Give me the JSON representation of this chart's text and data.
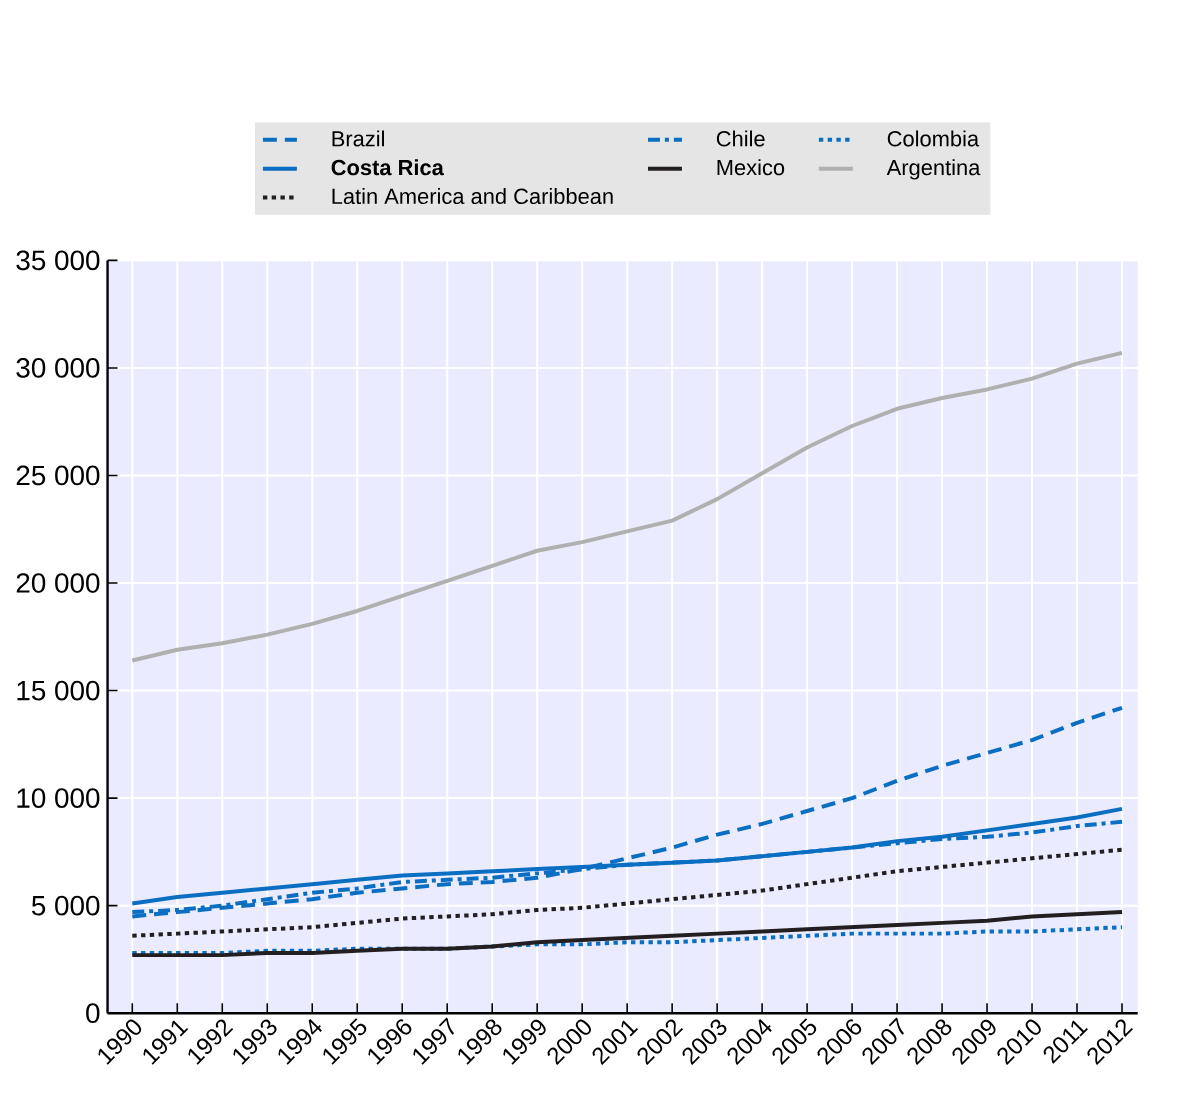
{
  "chart_data": {
    "type": "line",
    "categories": [
      "1990",
      "1991",
      "1992",
      "1993",
      "1994",
      "1995",
      "1996",
      "1997",
      "1998",
      "1999",
      "2000",
      "2001",
      "2002",
      "2003",
      "2004",
      "2005",
      "2006",
      "2007",
      "2008",
      "2009",
      "2010",
      "2011",
      "2012"
    ],
    "series": [
      {
        "name": "Brazil",
        "color": "#0a6fc2",
        "line_style": "dashed",
        "values": [
          4500,
          4700,
          4900,
          5100,
          5300,
          5600,
          5800,
          6000,
          6100,
          6300,
          6700,
          7200,
          7700,
          8300,
          8800,
          9400,
          10000,
          10800,
          11500,
          12100,
          12700,
          13500,
          14200
        ]
      },
      {
        "name": "Chile",
        "color": "#0a6fc2",
        "line_style": "dashdot",
        "values": [
          4700,
          4800,
          5000,
          5300,
          5600,
          5800,
          6100,
          6200,
          6300,
          6500,
          6700,
          6900,
          7000,
          7100,
          7300,
          7500,
          7700,
          7900,
          8100,
          8200,
          8400,
          8700,
          8900
        ]
      },
      {
        "name": "Colombia",
        "color": "#0a6fc2",
        "line_style": "dotted",
        "values": [
          2800,
          2800,
          2800,
          2900,
          2900,
          3000,
          3000,
          3000,
          3100,
          3200,
          3200,
          3300,
          3300,
          3400,
          3500,
          3600,
          3700,
          3700,
          3700,
          3800,
          3800,
          3900,
          4000
        ]
      },
      {
        "name": "**Costa Rica**",
        "color": "#0a6fc2",
        "line_style": "solid",
        "values": [
          5100,
          5400,
          5600,
          5800,
          6000,
          6200,
          6400,
          6500,
          6600,
          6700,
          6800,
          6900,
          7000,
          7100,
          7300,
          7500,
          7700,
          8000,
          8200,
          8500,
          8800,
          9100,
          9500
        ]
      },
      {
        "name": "Mexico",
        "color": "#231f20",
        "line_style": "solid",
        "values": [
          2700,
          2700,
          2700,
          2800,
          2800,
          2900,
          3000,
          3000,
          3100,
          3300,
          3400,
          3500,
          3600,
          3700,
          3800,
          3900,
          4000,
          4100,
          4200,
          4300,
          4500,
          4600,
          4700
        ]
      },
      {
        "name": "Argentina",
        "color": "#b0b0b0",
        "line_style": "solid",
        "values": [
          16400,
          16900,
          17200,
          17600,
          18100,
          18700,
          19400,
          20100,
          20800,
          21500,
          21900,
          22400,
          22900,
          23900,
          25100,
          26300,
          27300,
          28100,
          28600,
          29000,
          29500,
          30200,
          30700
        ]
      },
      {
        "name": "Latin America and Caribbean",
        "color": "#231f20",
        "line_style": "dotted",
        "values": [
          3600,
          3700,
          3800,
          3900,
          4000,
          4200,
          4400,
          4500,
          4600,
          4800,
          4900,
          5100,
          5300,
          5500,
          5700,
          6000,
          6300,
          6600,
          6800,
          7000,
          7200,
          7400,
          7600
        ]
      }
    ],
    "ylim": [
      0,
      35000
    ],
    "yticks": [
      0,
      {
        "value": 5000,
        "label": "5 000"
      },
      {
        "value": 10000,
        "label": "10 000"
      },
      {
        "value": 15000,
        "label": "15 000"
      },
      {
        "value": 20000,
        "label": "20 000"
      },
      {
        "value": 25000,
        "label": "25 000"
      },
      {
        "value": 30000,
        "label": "30 000"
      },
      {
        "value": 35000,
        "label": "35 000"
      }
    ],
    "grid": true,
    "legend": "top"
  }
}
